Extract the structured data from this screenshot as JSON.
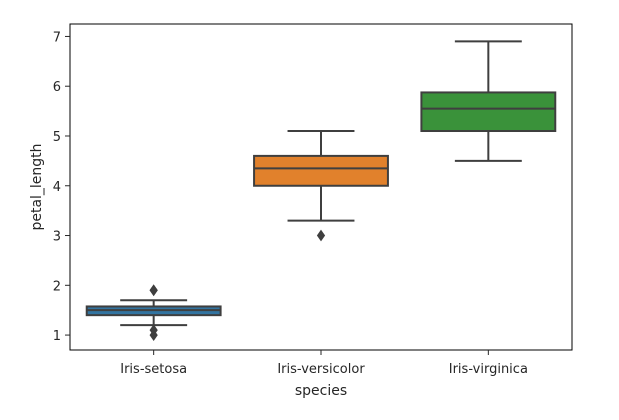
{
  "chart_data": {
    "type": "box",
    "title": "",
    "xlabel": "species",
    "ylabel": "petal_length",
    "ylim": [
      0.7,
      7.25
    ],
    "yticks": [
      1,
      2,
      3,
      4,
      5,
      6,
      7
    ],
    "grid": false,
    "categories": [
      "Iris-setosa",
      "Iris-versicolor",
      "Iris-virginica"
    ],
    "boxes": [
      {
        "category": "Iris-setosa",
        "color": "#3274a1",
        "whisker_low": 1.2,
        "q1": 1.4,
        "median": 1.5,
        "q3": 1.575,
        "whisker_high": 1.7,
        "outliers": [
          1.0,
          1.1,
          1.9,
          1.9
        ]
      },
      {
        "category": "Iris-versicolor",
        "color": "#e1812c",
        "whisker_low": 3.3,
        "q1": 4.0,
        "median": 4.35,
        "q3": 4.6,
        "whisker_high": 5.1,
        "outliers": [
          3.0
        ]
      },
      {
        "category": "Iris-virginica",
        "color": "#3a923a",
        "whisker_low": 4.5,
        "q1": 5.1,
        "median": 5.55,
        "q3": 5.875,
        "whisker_high": 6.9,
        "outliers": []
      }
    ],
    "line_color": "#3f3f3f"
  }
}
